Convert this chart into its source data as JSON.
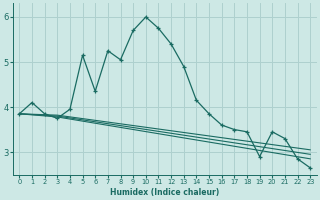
{
  "xlabel": "Humidex (Indice chaleur)",
  "xlim": [
    -0.5,
    23.5
  ],
  "ylim": [
    2.5,
    6.3
  ],
  "yticks": [
    3,
    4,
    5,
    6
  ],
  "xticks": [
    0,
    1,
    2,
    3,
    4,
    5,
    6,
    7,
    8,
    9,
    10,
    11,
    12,
    13,
    14,
    15,
    16,
    17,
    18,
    19,
    20,
    21,
    22,
    23
  ],
  "bg_color": "#cde8e5",
  "grid_color": "#aed0ce",
  "line_color": "#1a6b62",
  "line1_x": [
    0,
    1,
    2,
    3,
    4,
    5,
    6,
    7,
    8,
    9,
    10,
    11,
    12,
    13,
    14,
    15,
    16,
    17,
    18,
    19,
    20,
    21,
    22,
    23
  ],
  "line1_y": [
    3.85,
    4.1,
    3.85,
    3.75,
    3.95,
    5.15,
    4.35,
    5.25,
    5.05,
    5.7,
    6.0,
    5.75,
    5.4,
    4.9,
    4.15,
    3.85,
    3.6,
    3.5,
    3.45,
    2.9,
    3.45,
    3.3,
    2.85,
    2.65
  ],
  "line2_x": [
    0,
    3,
    23
  ],
  "line2_y": [
    3.85,
    3.82,
    3.05
  ],
  "line3_x": [
    0,
    3,
    23
  ],
  "line3_y": [
    3.85,
    3.8,
    2.95
  ],
  "line4_x": [
    0,
    3,
    23
  ],
  "line4_y": [
    3.85,
    3.78,
    2.85
  ]
}
